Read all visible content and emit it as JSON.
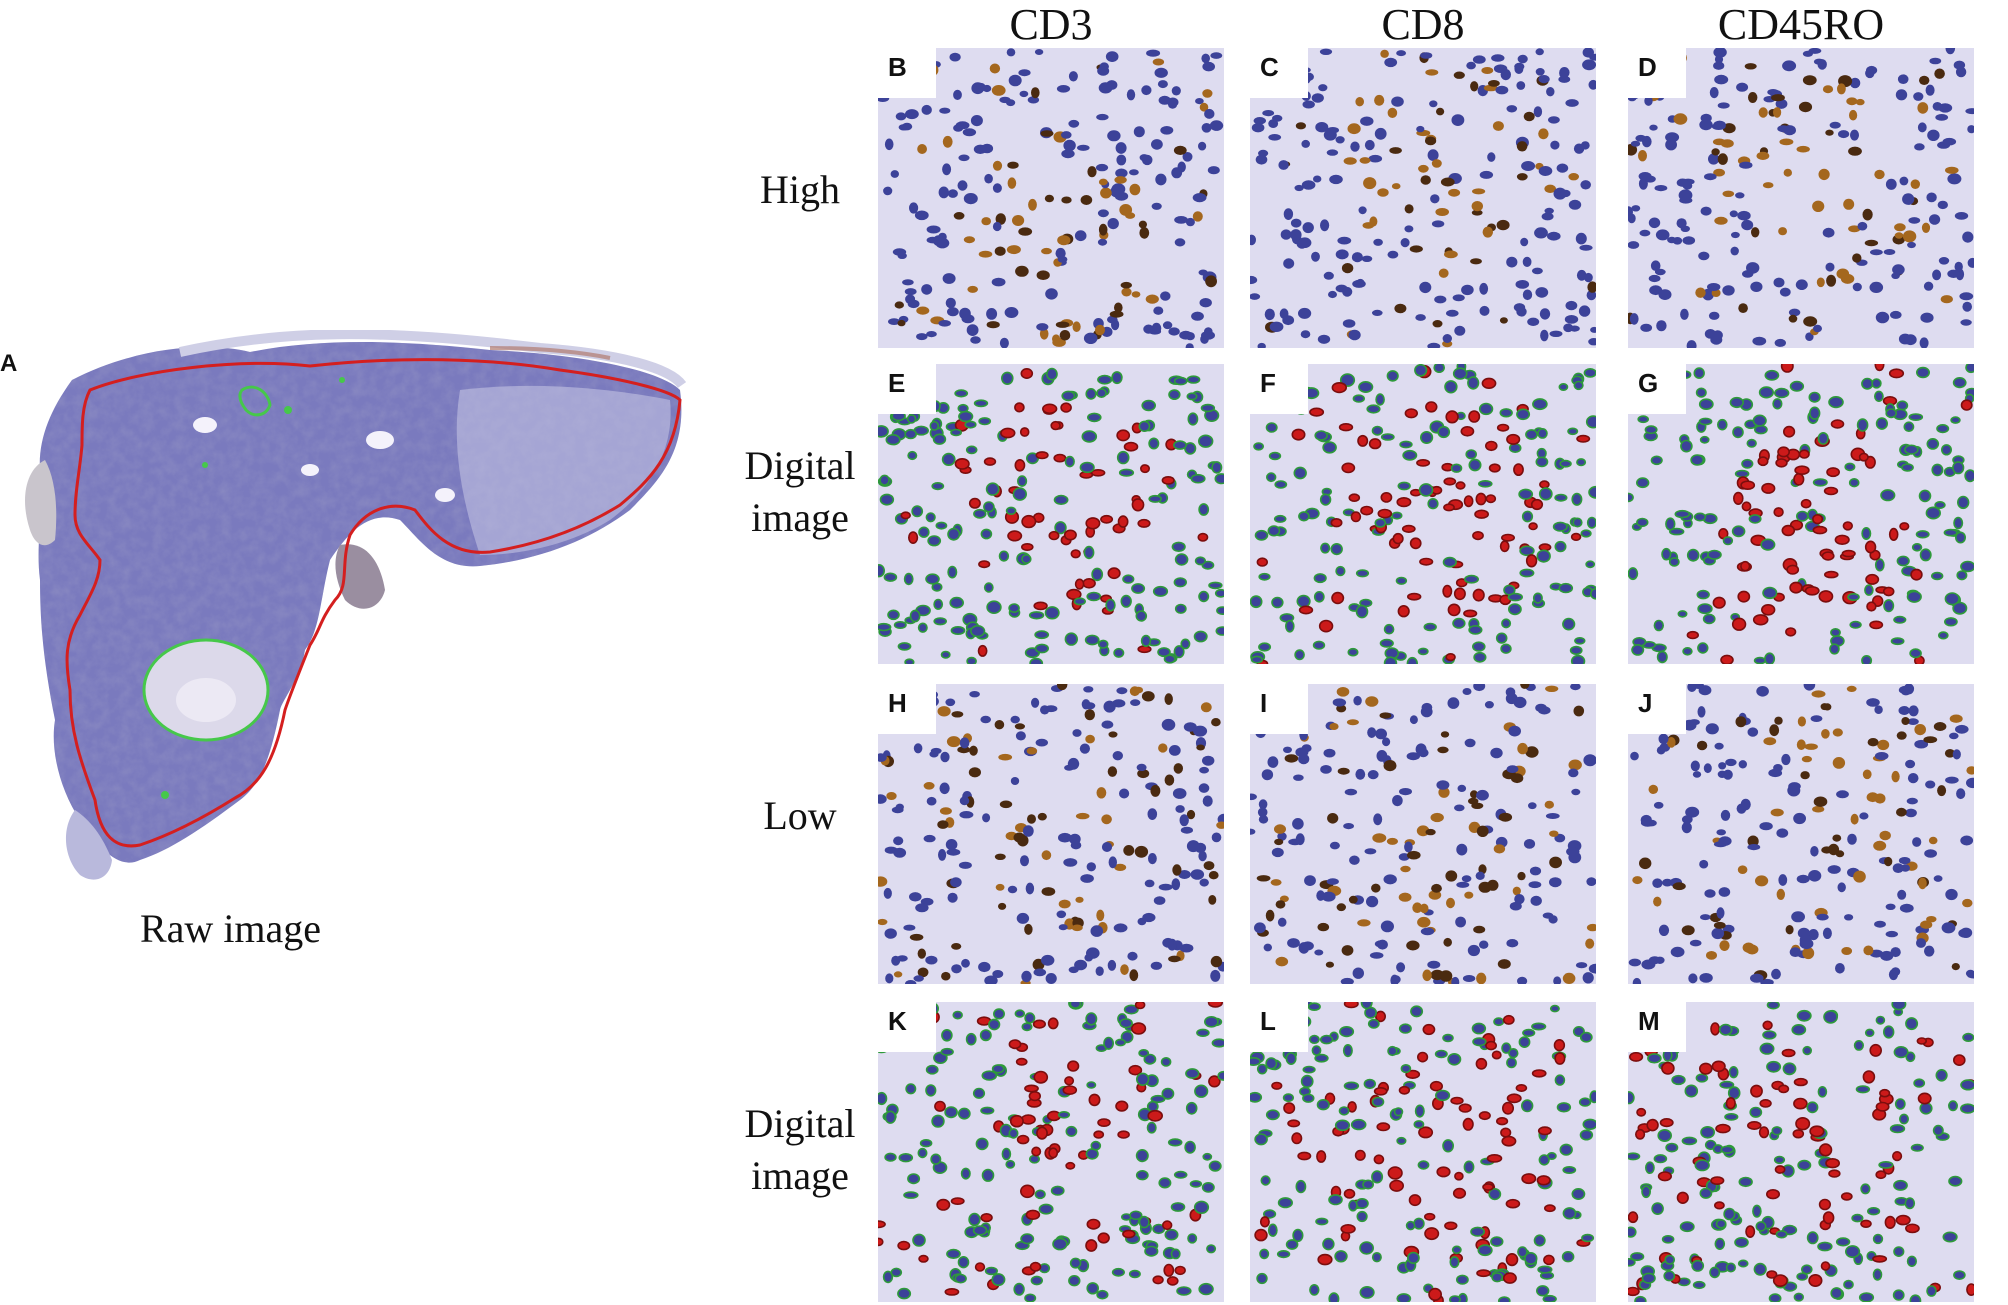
{
  "figure": {
    "panel_a_letter": "A",
    "raw_caption": "Raw image",
    "columns": [
      "CD3",
      "CD8",
      "CD45RO"
    ],
    "rows": [
      {
        "label_lines": [
          "High"
        ],
        "kind": "stain"
      },
      {
        "label_lines": [
          "Digital",
          "image"
        ],
        "kind": "digital"
      },
      {
        "label_lines": [
          "Low"
        ],
        "kind": "stain"
      },
      {
        "label_lines": [
          "Digital",
          "image"
        ],
        "kind": "digital"
      }
    ],
    "panel_letters": [
      [
        "B",
        "C",
        "D"
      ],
      [
        "E",
        "F",
        "G"
      ],
      [
        "H",
        "I",
        "J"
      ],
      [
        "K",
        "L",
        "M"
      ]
    ]
  },
  "colors": {
    "tissue": "#6f6fb8",
    "tissue_light": "#a7a7d3",
    "background": "#dedcf0",
    "nucleus_blue": "#3c4299",
    "nucleus_brown": "#4a2a10",
    "brown_stain": "#a4671e",
    "positive_red": "#cc1a1a",
    "negative_green": "#2e9a3a",
    "tumor_outline": "#d41f1f",
    "exclusion_outline": "#46c84a"
  }
}
